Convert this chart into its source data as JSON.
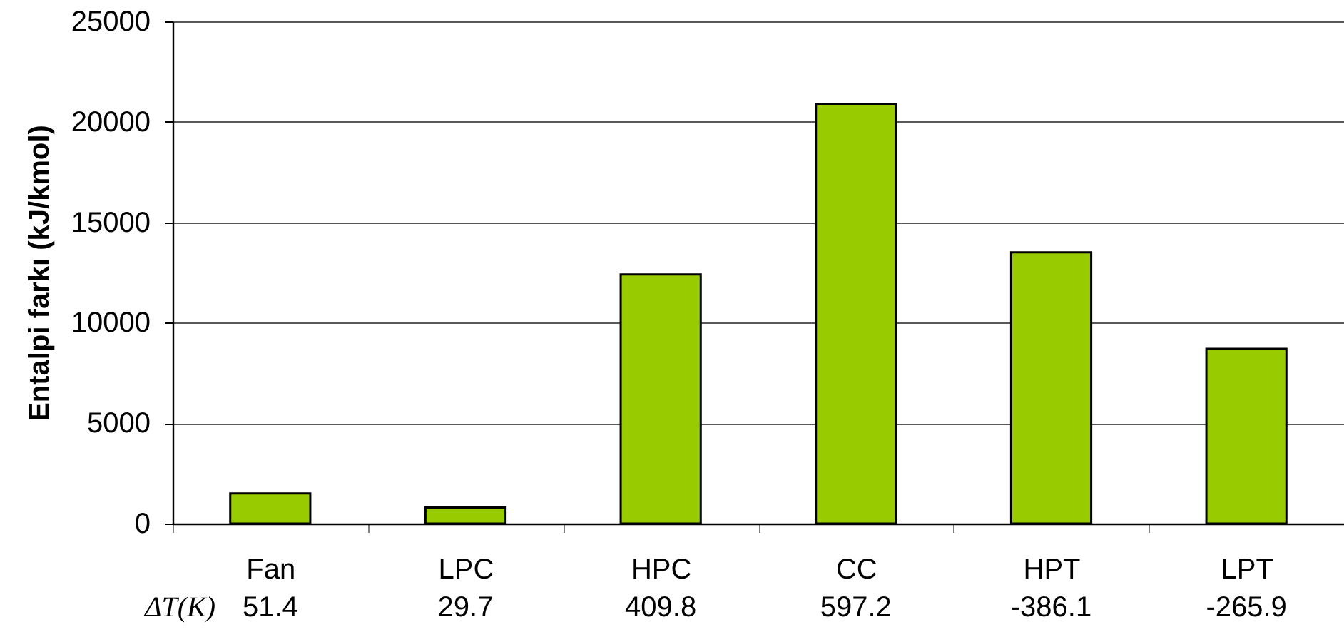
{
  "chart_data": {
    "type": "bar",
    "ylabel": "Entalpi farkı (kJ/kmol)",
    "categories": [
      "Fan",
      "LPC",
      "HPC",
      "CC",
      "HPT",
      "LPT"
    ],
    "values": [
      1500,
      800,
      12400,
      20900,
      13500,
      8700
    ],
    "color": "#99cc00",
    "ylim": [
      0,
      25000
    ],
    "yticks": [
      0,
      5000,
      10000,
      15000,
      20000,
      25000
    ],
    "grid": "y",
    "annotations": [
      "ΔT(K)",
      "51.4",
      "29.7",
      "409.8",
      "597.2",
      "-386.1",
      "-265.9"
    ]
  }
}
